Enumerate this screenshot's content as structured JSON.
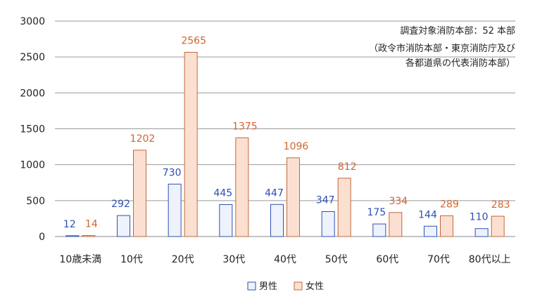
{
  "chart_data": {
    "type": "bar",
    "categories": [
      "10歳未満",
      "10代",
      "20代",
      "30代",
      "40代",
      "50代",
      "60代",
      "70代",
      "80代以上"
    ],
    "series": [
      {
        "name": "男性",
        "values": [
          12,
          292,
          730,
          445,
          447,
          347,
          175,
          144,
          110
        ],
        "fill": "#eef3fb",
        "stroke": "#2e4fb4",
        "label_color": "#2e4fb4"
      },
      {
        "name": "女性",
        "values": [
          14,
          1202,
          2565,
          1375,
          1096,
          812,
          334,
          289,
          283
        ],
        "fill": "#fbe0d2",
        "stroke": "#c0673a",
        "label_color": "#d0652e"
      }
    ],
    "ylim": [
      0,
      3000
    ],
    "yticks": [
      0,
      500,
      1000,
      1500,
      2000,
      2500,
      3000
    ],
    "grid": true,
    "legend_position": "bottom",
    "annotations": [
      "調査対象消防本部：52 本部",
      "（政令市消防本部・東京消防庁及び",
      "各都道県の代表消防本部）"
    ]
  }
}
